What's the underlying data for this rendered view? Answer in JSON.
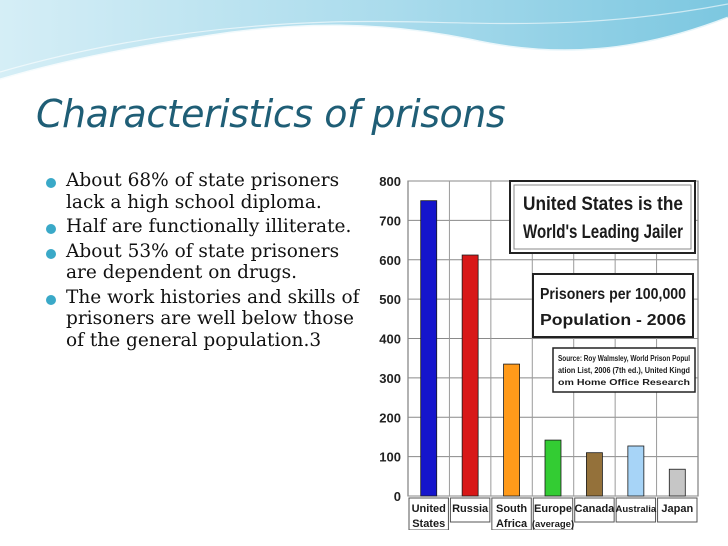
{
  "slide": {
    "title": "Characteristics of prisons",
    "bullets": [
      "About 68% of state prisoners lack a high school diploma.",
      "Half are functionally illiterate.",
      "About 53% of state prisoners are dependent on drugs.",
      "The work histories and skills of prisoners are well below those of the general population.3"
    ],
    "accent_color": "#3aa9c8",
    "title_color": "#1f5e76"
  },
  "chart_data": {
    "type": "bar",
    "categories": [
      [
        "United",
        "States"
      ],
      [
        "Russia"
      ],
      [
        "South",
        "Africa"
      ],
      [
        "Europe",
        "(average)"
      ],
      [
        "Canada"
      ],
      [
        "Australia"
      ],
      [
        "Japan"
      ]
    ],
    "values": [
      750,
      612,
      335,
      142,
      110,
      127,
      68
    ],
    "colors": [
      "#1515cc",
      "#d81818",
      "#ff9a1a",
      "#33cc33",
      "#94713a",
      "#a7d4f7",
      "#c6c6c6"
    ],
    "ylim": [
      0,
      800
    ],
    "yticks": [
      "0",
      "100",
      "200",
      "300",
      "400",
      "500",
      "600",
      "700",
      "800"
    ],
    "grid": true,
    "title": "United States is the World's Leading Jailer",
    "subtitle": "Prisoners per 100,000 Population - 2006",
    "source": "Source: Roy Walmsley, World Prison Population List, 2006 (7th ed.), United Kingdom Home Office Research"
  }
}
